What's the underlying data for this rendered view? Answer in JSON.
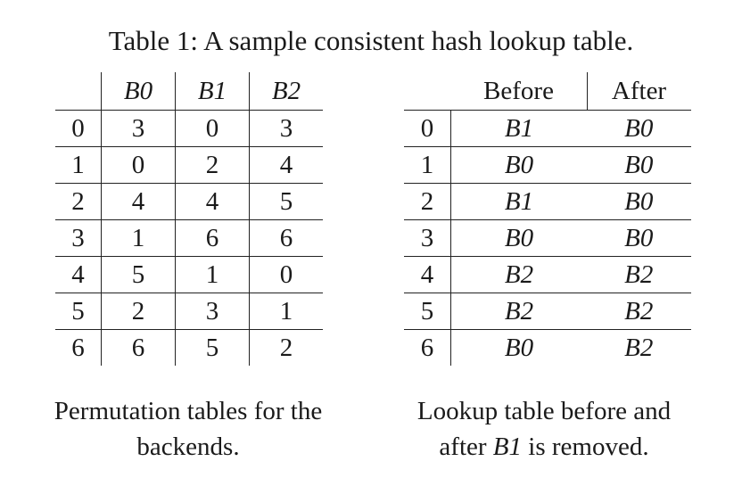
{
  "title": "Table 1: A sample consistent hash lookup table.",
  "permutation_table": {
    "headers": [
      "",
      "B0",
      "B1",
      "B2"
    ],
    "rows": [
      [
        "0",
        "3",
        "0",
        "3"
      ],
      [
        "1",
        "0",
        "2",
        "4"
      ],
      [
        "2",
        "4",
        "4",
        "5"
      ],
      [
        "3",
        "1",
        "6",
        "6"
      ],
      [
        "4",
        "5",
        "1",
        "0"
      ],
      [
        "5",
        "2",
        "3",
        "1"
      ],
      [
        "6",
        "6",
        "5",
        "2"
      ]
    ],
    "caption_line1": "Permutation tables for the",
    "caption_line2": "backends."
  },
  "lookup_table": {
    "headers": [
      "",
      "Before",
      "After"
    ],
    "rows": [
      [
        "0",
        "B1",
        "B0"
      ],
      [
        "1",
        "B0",
        "B0"
      ],
      [
        "2",
        "B1",
        "B0"
      ],
      [
        "3",
        "B0",
        "B0"
      ],
      [
        "4",
        "B2",
        "B2"
      ],
      [
        "5",
        "B2",
        "B2"
      ],
      [
        "6",
        "B0",
        "B2"
      ]
    ],
    "caption_line1": "Lookup table before and",
    "caption_line2_prefix": "after ",
    "caption_line2_em": "B1",
    "caption_line2_suffix": " is removed."
  }
}
